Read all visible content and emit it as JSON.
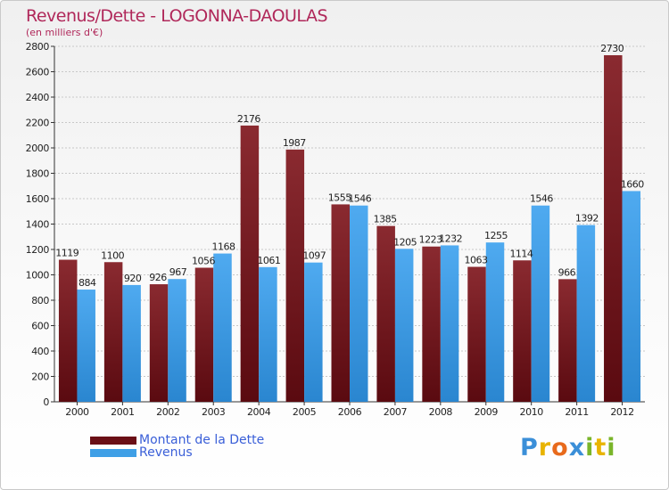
{
  "header": {
    "title": "Revenus/Dette - LOGONNA-DAOULAS",
    "subtitle": "(en milliers d'€)"
  },
  "colors": {
    "dette": "#7a1a22",
    "revenus": "#3f9fe6",
    "title": "#b0285a",
    "legend_text": "#3a5fd8"
  },
  "chart_data": {
    "type": "bar",
    "title": "Revenus/Dette - LOGONNA-DAOULAS",
    "ylabel": "(en milliers d'€)",
    "xlabel": "",
    "ylim": [
      0,
      2800
    ],
    "yticks": [
      0,
      200,
      400,
      600,
      800,
      1000,
      1200,
      1400,
      1600,
      1800,
      2000,
      2200,
      2400,
      2600,
      2800
    ],
    "grid": true,
    "legend_position": "bottom-left",
    "categories": [
      "2000",
      "2001",
      "2002",
      "2003",
      "2004",
      "2005",
      "2006",
      "2007",
      "2008",
      "2009",
      "2010",
      "2011",
      "2012"
    ],
    "series": [
      {
        "name": "Montant de la Dette",
        "values": [
          1119,
          1100,
          926,
          1056,
          2176,
          1987,
          1555,
          1385,
          1223,
          1063,
          1114,
          966,
          2730
        ]
      },
      {
        "name": "Revenus",
        "values": [
          884,
          920,
          967,
          1168,
          1061,
          1097,
          1546,
          1205,
          1232,
          1255,
          1546,
          1392,
          1660
        ]
      }
    ]
  },
  "legend": {
    "dette_label": "Montant de la Dette",
    "revenus_label": "Revenus"
  },
  "logo": {
    "letters": [
      "P",
      "r",
      "o",
      "x",
      "i",
      "t",
      "i"
    ],
    "colors": [
      "#3b8fd8",
      "#e8b400",
      "#e86a1c",
      "#3b8fd8",
      "#7ab52a",
      "#e8b400",
      "#7ab52a"
    ]
  }
}
